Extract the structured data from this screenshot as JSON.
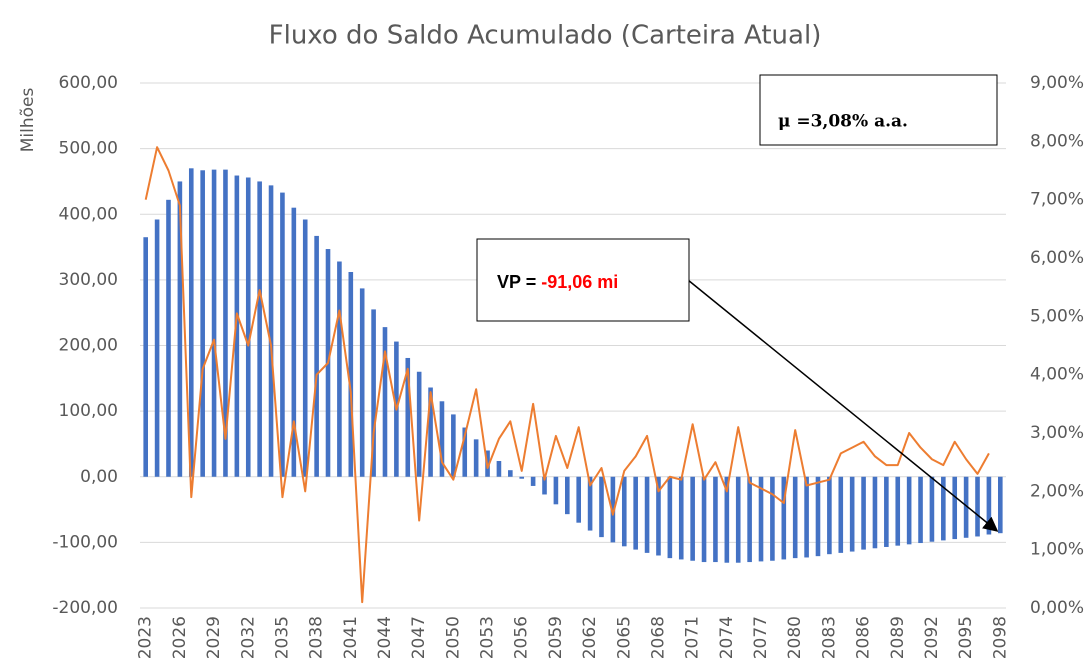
{
  "chart_data": {
    "type": "bar-line",
    "title": "Fluxo do Saldo Acumulado (Carteira Atual)",
    "y_label": "Milhões",
    "categories": [
      "2023",
      null,
      null,
      "2026",
      null,
      null,
      "2029",
      null,
      null,
      "2032",
      null,
      null,
      "2035",
      null,
      null,
      "2038",
      null,
      null,
      "2041",
      null,
      null,
      "2044",
      null,
      null,
      "2047",
      null,
      null,
      "2050",
      null,
      null,
      "2053",
      null,
      null,
      "2056",
      null,
      null,
      "2059",
      null,
      null,
      "2062",
      null,
      null,
      "2065",
      null,
      null,
      "2068",
      null,
      null,
      "2071",
      null,
      null,
      "2074",
      null,
      null,
      "2077",
      null,
      null,
      "2080",
      null,
      null,
      "2083",
      null,
      null,
      "2086",
      null,
      null,
      "2089",
      null,
      null,
      "2092",
      null,
      null,
      "2095",
      null,
      null,
      "2098"
    ],
    "series": [
      {
        "type": "bar",
        "color": "#4472c4",
        "values": [
          365,
          392,
          422,
          450,
          470,
          467,
          468,
          468,
          459,
          456,
          450,
          444,
          433,
          410,
          392,
          367,
          347,
          328,
          312,
          287,
          255,
          228,
          206,
          181,
          160,
          136,
          115,
          95,
          75,
          57,
          40,
          24,
          10,
          -3,
          -14,
          -27,
          -42,
          -57,
          -70,
          -82,
          -92,
          -100,
          -106,
          -111,
          -116,
          -120,
          -124,
          -126,
          -128,
          -130,
          -130,
          -131,
          -131,
          -130,
          -129,
          -128,
          -126,
          -124,
          -123,
          -121,
          -118,
          -116,
          -114,
          -111,
          -109,
          -107,
          -105,
          -103,
          -101,
          -99,
          -97,
          -95,
          -93,
          -91,
          -88,
          -86
        ]
      },
      {
        "type": "line",
        "axis": "y2",
        "color": "#ed7d31",
        "values": [
          7.0,
          7.9,
          7.5,
          6.9,
          1.9,
          4.1,
          4.6,
          2.9,
          5.05,
          4.5,
          5.45,
          4.5,
          1.9,
          3.2,
          2.0,
          4.0,
          4.2,
          5.1,
          3.7,
          0.1,
          3.0,
          4.4,
          3.4,
          4.1,
          1.5,
          3.7,
          2.5,
          2.2,
          2.95,
          3.75,
          2.4,
          2.9,
          3.2,
          2.35,
          3.5,
          2.2,
          2.95,
          2.4,
          3.1,
          2.1,
          2.4,
          1.6,
          2.35,
          2.6,
          2.95,
          2.0,
          2.25,
          2.2,
          3.15,
          2.2,
          2.5,
          2.0,
          3.1,
          2.15,
          2.05,
          1.95,
          1.8,
          3.05,
          2.1,
          2.15,
          2.2,
          2.65,
          2.75,
          2.85,
          2.6,
          2.45,
          2.45,
          3.0,
          2.75,
          2.55,
          2.45,
          2.85,
          2.55,
          2.3,
          2.65,
          null
        ]
      }
    ],
    "ylim": [
      -200,
      600
    ],
    "yticks": [
      {
        "value": -200,
        "label": "-200,00"
      },
      {
        "value": -100,
        "label": "-100,00"
      },
      {
        "value": 0,
        "label": "0,00"
      },
      {
        "value": 100,
        "label": "100,00"
      },
      {
        "value": 200,
        "label": "200,00"
      },
      {
        "value": 300,
        "label": "300,00"
      },
      {
        "value": 400,
        "label": "400,00"
      },
      {
        "value": 500,
        "label": "500,00"
      },
      {
        "value": 600,
        "label": "600,00"
      }
    ],
    "y2lim": [
      0,
      9
    ],
    "y2ticks": [
      {
        "value": 0,
        "label": "0,00%"
      },
      {
        "value": 1,
        "label": "1,00%"
      },
      {
        "value": 2,
        "label": "2,00%"
      },
      {
        "value": 3,
        "label": "3,00%"
      },
      {
        "value": 4,
        "label": "4,00%"
      },
      {
        "value": 5,
        "label": "5,00%"
      },
      {
        "value": 6,
        "label": "6,00%"
      },
      {
        "value": 7,
        "label": "7,00%"
      },
      {
        "value": 8,
        "label": "8,00%"
      },
      {
        "value": 9,
        "label": "9,00%"
      }
    ],
    "grid": true,
    "annotations": [
      {
        "text": "μ =3,08% a.a."
      },
      {
        "text": "VP = ",
        "value_text": "-91,06 mi"
      }
    ]
  }
}
